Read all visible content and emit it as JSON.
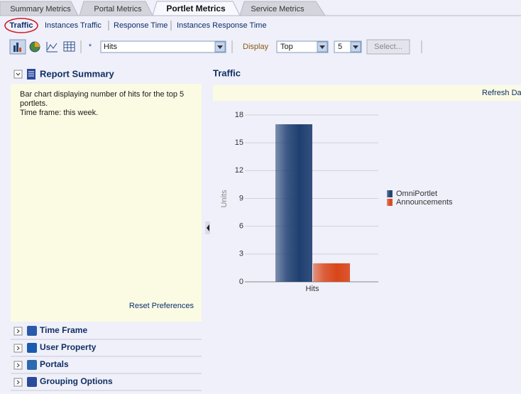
{
  "tabs": [
    "Summary Metrics",
    "Portal Metrics",
    "Portlet Metrics",
    "Service Metrics"
  ],
  "subtabs": [
    "Traffic",
    "Instances Traffic",
    "Response Time",
    "Instances Response Time"
  ],
  "toolbar": {
    "required_mark": "*",
    "metric": "Hits",
    "display_label": "Display",
    "display_order": "Top",
    "display_count": "5",
    "select_button": "Select..."
  },
  "report_summary": {
    "title": "Report Summary",
    "description": [
      "Bar chart displaying number of hits for the top 5",
      "portlets.",
      "Time frame: this week."
    ],
    "reset": "Reset Preferences"
  },
  "accordion": [
    "Time Frame",
    "User Property",
    "Portals",
    "Grouping Options"
  ],
  "panel_title": "Traffic",
  "refresh": "Refresh Data",
  "chart_data": {
    "type": "bar",
    "categories": [
      "Hits"
    ],
    "y_label": "Units",
    "series": [
      {
        "name": "OmniPortlet",
        "color": "#1e3f70",
        "values": [
          17
        ]
      },
      {
        "name": "Announcements",
        "color": "#d8461a",
        "values": [
          2
        ]
      }
    ],
    "ylim": [
      0,
      18
    ],
    "yticks": [
      0,
      3,
      6,
      9,
      12,
      15,
      18
    ],
    "grid": true
  }
}
